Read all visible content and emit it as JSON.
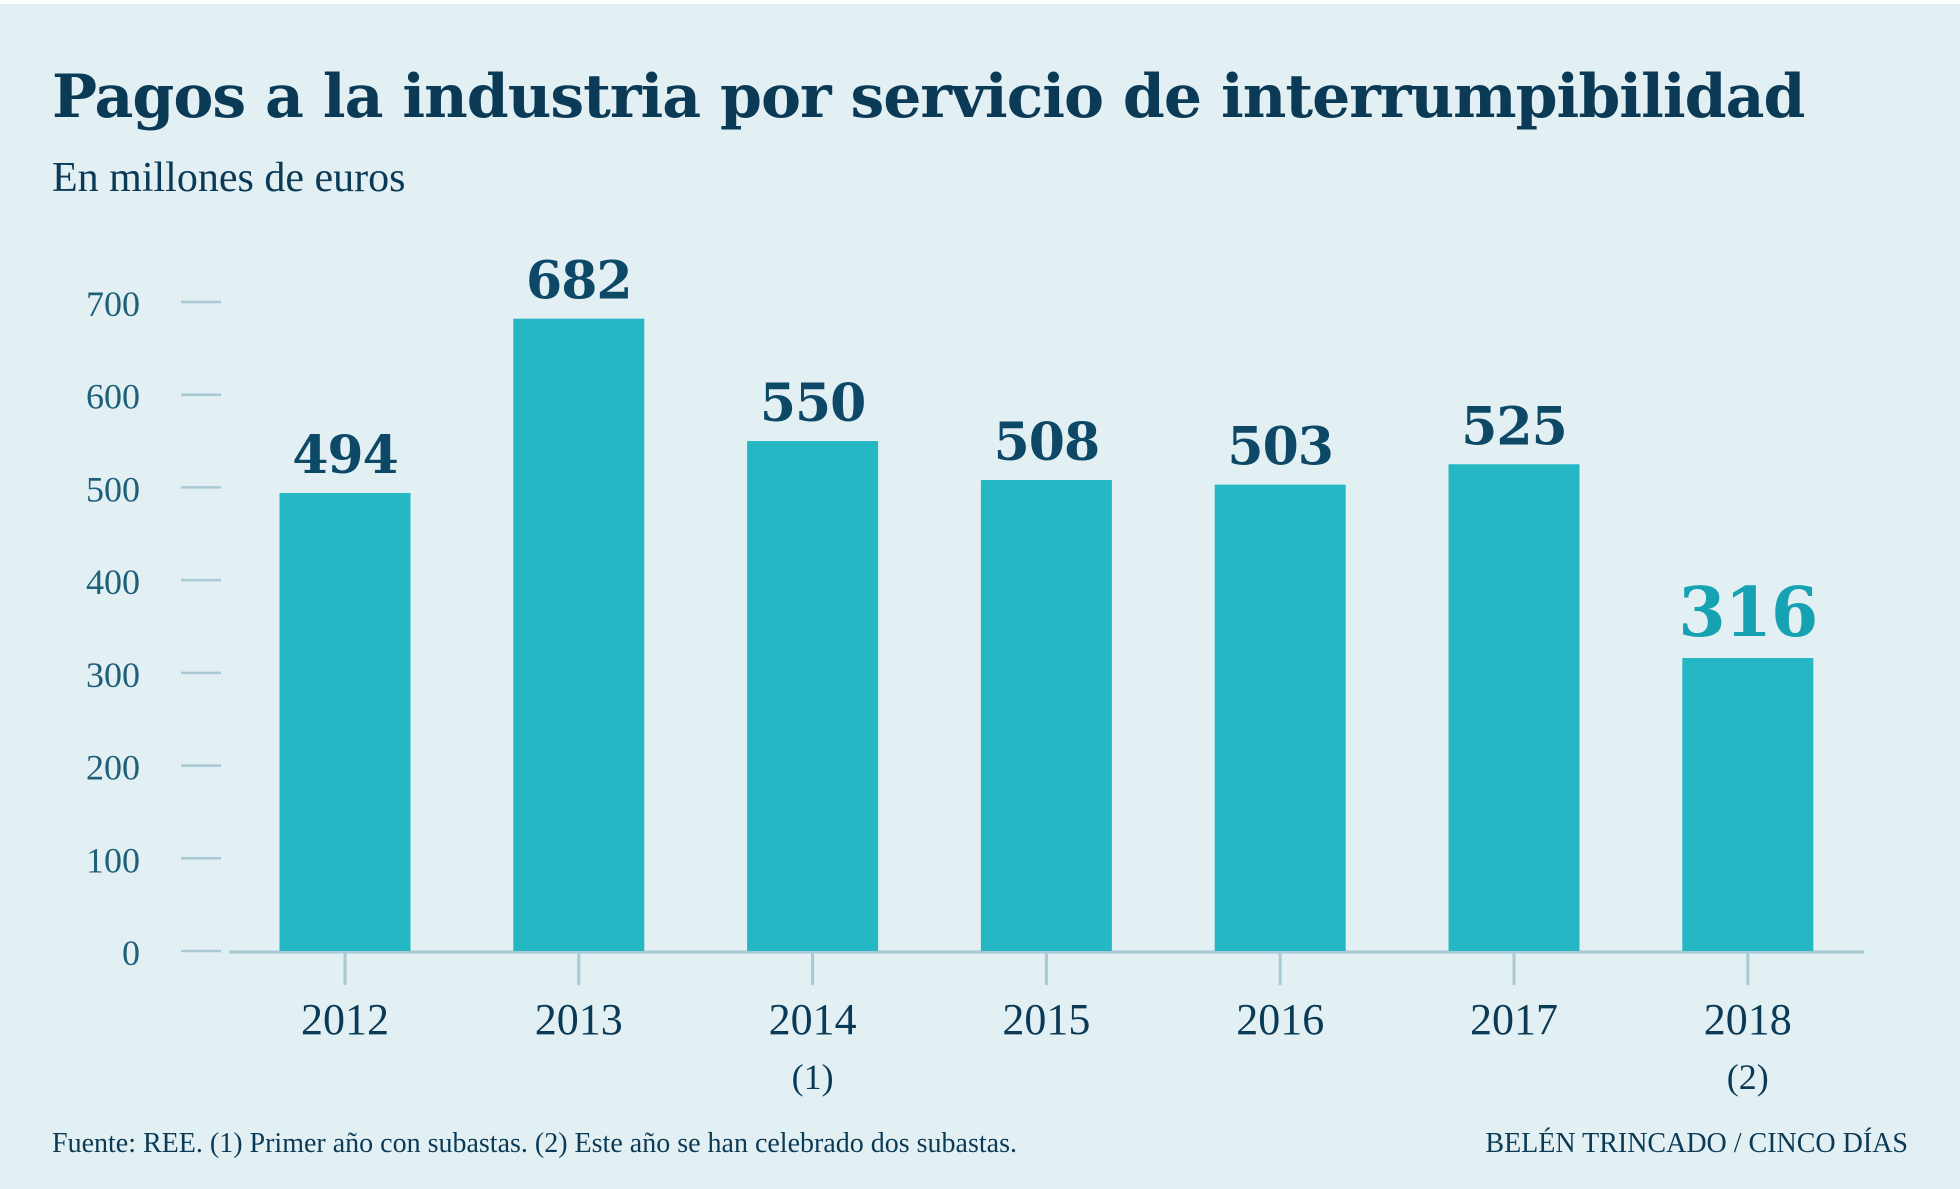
{
  "title": "Pagos a la industria por servicio de interrumpibilidad",
  "subtitle": "En millones de euros",
  "footer": {
    "source": "Fuente: REE. (1) Primer año con subastas. (2) Este año se han celebrado dos subastas.",
    "credit": "BELÉN TRINCADO / CINCO DÍAS"
  },
  "colors": {
    "background": "#e2f0f4",
    "bar": "#25b8c4",
    "text": "#0b3a56",
    "highlight_label": "#16a2b3"
  },
  "chart_data": {
    "type": "bar",
    "title": "Pagos a la industria por servicio de interrumpibilidad",
    "subtitle": "En millones de euros",
    "categories": [
      "2012",
      "2013",
      "2014",
      "2015",
      "2016",
      "2017",
      "2018"
    ],
    "category_notes": [
      "",
      "",
      "(1)",
      "",
      "",
      "",
      "(2)"
    ],
    "values": [
      494,
      682,
      550,
      508,
      503,
      525,
      316
    ],
    "data_labels": [
      "494",
      "682",
      "550",
      "508",
      "503",
      "525",
      "316"
    ],
    "highlighted": [
      false,
      false,
      false,
      false,
      false,
      false,
      true
    ],
    "ylim": [
      0,
      700
    ],
    "yticks": [
      0,
      100,
      200,
      300,
      400,
      500,
      600,
      700
    ],
    "grid": false,
    "xlabel": "",
    "ylabel": ""
  }
}
